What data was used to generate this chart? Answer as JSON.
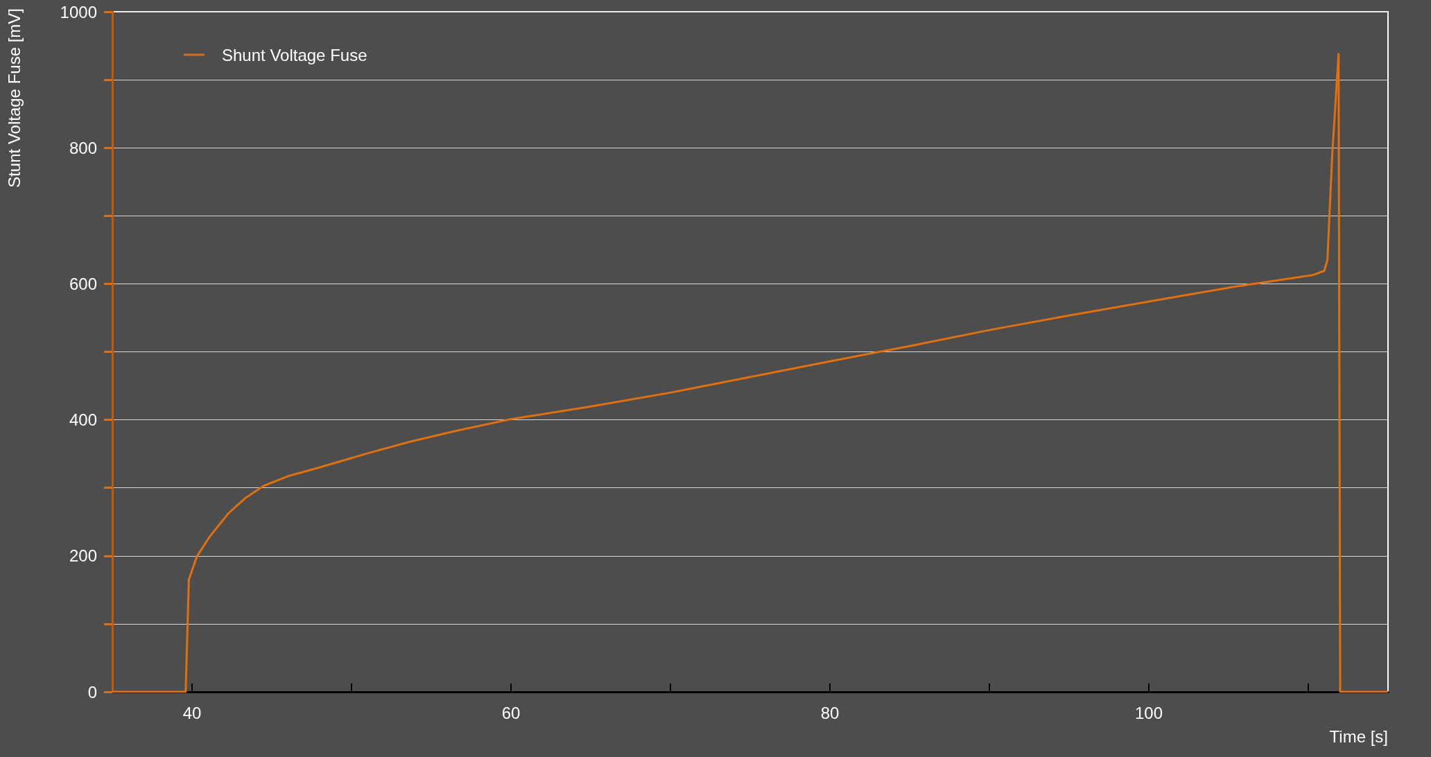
{
  "chart_data": {
    "type": "line",
    "xlabel": "Time [s]",
    "ylabel": "Stunt Voltage Fuse [mV]",
    "xlim": [
      35,
      115
    ],
    "ylim": [
      0,
      1000
    ],
    "xticks": [
      40,
      {
        "value": 50,
        "label": null
      },
      60,
      {
        "value": 70,
        "label": null
      },
      80,
      {
        "value": 90,
        "label": null
      },
      100,
      {
        "value": 110,
        "label": null
      }
    ],
    "yticks": [
      0,
      {
        "value": 100,
        "label": null
      },
      200,
      {
        "value": 300,
        "label": null
      },
      400,
      {
        "value": 500,
        "label": null
      },
      600,
      {
        "value": 700,
        "label": null
      },
      800,
      {
        "value": 900,
        "label": null
      },
      1000
    ],
    "grid": "y",
    "legend": "top left",
    "series": [
      {
        "name": "Shunt Voltage Fuse",
        "color": "#e07010",
        "x": [
          35,
          39.6,
          39.8,
          40.3,
          41.1,
          42.3,
          43.4,
          44.5,
          46,
          48,
          50.9,
          53.7,
          56.6,
          60,
          65.1,
          70,
          74.8,
          80,
          85.1,
          90,
          94.9,
          100,
          105.2,
          110.3,
          111,
          111.2,
          111.5,
          111.9,
          112,
          115
        ],
        "values": [
          0,
          0,
          165,
          199,
          228,
          263,
          286,
          303,
          317,
          330,
          350,
          368,
          384,
          401,
          420,
          440,
          462,
          486,
          509,
          532,
          553,
          574,
          595,
          613,
          619,
          635,
          789,
          938,
          0,
          0
        ]
      }
    ]
  }
}
